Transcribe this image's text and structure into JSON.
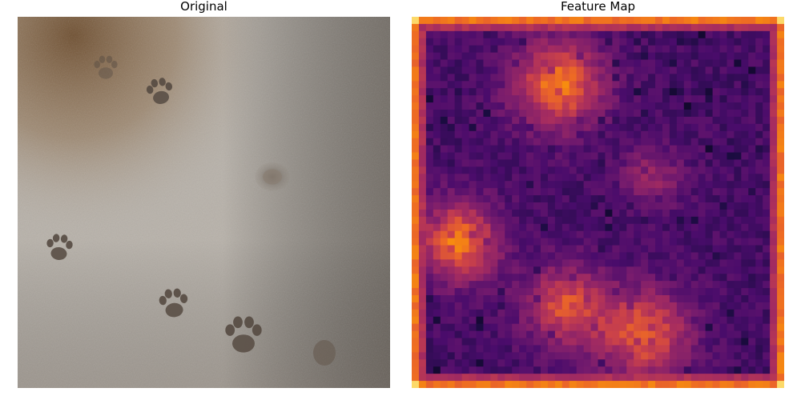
{
  "panels": {
    "left": {
      "title": "Original"
    },
    "right": {
      "title": "Feature Map"
    }
  },
  "colormap": "inferno",
  "colors": {
    "stone_light": "#b9b4ad",
    "stone_mid": "#a29a90",
    "stone_dark": "#6f655b",
    "rust_tint": "#7a5330",
    "print_shadow": "#5c5148",
    "map_dark": "#1b0c41",
    "map_purple": "#4f0f6f",
    "map_magenta": "#a02c5d",
    "map_orange": "#e2632b",
    "map_yellow": "#f8b628",
    "map_border": "#f17d1e"
  },
  "footprints": [
    {
      "label": "upper-left paw print"
    },
    {
      "label": "faint upper paw print"
    },
    {
      "label": "center depression"
    },
    {
      "label": "left paw print"
    },
    {
      "label": "lower-middle paw print"
    },
    {
      "label": "lower-right paw print"
    }
  ]
}
